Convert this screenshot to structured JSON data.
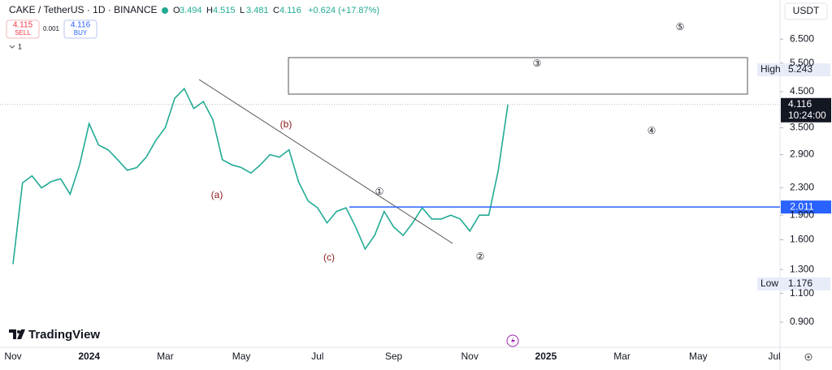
{
  "header": {
    "symbol": "CAKE / TetherUS · 1D · BINANCE",
    "ohlc": [
      {
        "key": "O",
        "value": "3.494"
      },
      {
        "key": "H",
        "value": "4.515"
      },
      {
        "key": "L",
        "value": "3.481"
      },
      {
        "key": "C",
        "value": "4.116"
      }
    ],
    "change": "+0.624 (+17.87%)",
    "sell": {
      "price": "4.115",
      "label": "SELL"
    },
    "spread": "0.001",
    "buy": {
      "price": "4.116",
      "label": "BUY"
    },
    "collapse": "1",
    "currency": "USDT",
    "brand": "TradingView"
  },
  "chart_data": {
    "type": "line",
    "log_scale": true,
    "color": "#22ab94",
    "categories": [
      "Nov",
      null,
      null,
      null,
      null,
      null,
      null,
      null,
      "2024",
      null,
      null,
      null,
      null,
      null,
      null,
      null,
      "Mar",
      null,
      null,
      null,
      null,
      null,
      null,
      null,
      "May",
      null,
      null,
      null,
      null,
      null,
      null,
      null,
      "Jul",
      null,
      null,
      null,
      null,
      null,
      null,
      null,
      "Sep",
      null,
      null,
      null,
      null,
      null,
      null,
      null,
      "Nov",
      null,
      null,
      null,
      null,
      null,
      null,
      null,
      "2025",
      null,
      null,
      null,
      null,
      null,
      null,
      null,
      "Mar",
      null,
      null,
      null,
      null,
      null,
      null,
      null,
      "May",
      null,
      null,
      null,
      null,
      null,
      null,
      null,
      "Jul"
    ],
    "values": [
      1.35,
      2.38,
      2.5,
      2.3,
      2.4,
      2.45,
      2.2,
      2.7,
      3.6,
      3.1,
      3.0,
      2.8,
      2.6,
      2.65,
      2.85,
      3.2,
      3.5,
      4.3,
      4.6,
      4.0,
      4.2,
      3.7,
      2.8,
      2.7,
      2.65,
      2.55,
      2.7,
      2.9,
      2.85,
      3.0,
      2.4,
      2.1,
      2.0,
      1.8,
      1.95,
      2.0,
      1.75,
      1.5,
      1.65,
      1.95,
      1.75,
      1.65,
      1.8,
      2.0,
      1.85,
      1.85,
      1.9,
      1.85,
      1.7,
      1.9,
      1.9,
      2.6,
      4.116,
      null,
      null,
      null,
      null,
      null,
      null,
      null,
      null,
      null,
      null,
      null,
      null,
      null,
      null,
      null,
      null,
      null,
      null,
      null,
      null,
      null,
      null,
      null,
      null,
      null,
      null,
      null,
      null
    ],
    "ylim": [
      0.755,
      8.54
    ],
    "yticks": [
      {
        "value": 0.9,
        "label": "0.900"
      },
      {
        "value": 1.1,
        "label": "1.100"
      },
      {
        "value": 1.3,
        "label": "1.300"
      },
      {
        "value": 1.6,
        "label": "1.600"
      },
      {
        "value": 1.9,
        "label": "1.900"
      },
      {
        "value": 2.3,
        "label": "2.300"
      },
      {
        "value": 2.9,
        "label": "2.900"
      },
      {
        "value": 3.5,
        "label": "3.500"
      },
      {
        "value": 4.5,
        "label": "4.500"
      },
      {
        "value": 5.5,
        "label": "5.500"
      },
      {
        "value": 6.5,
        "label": "6.500"
      }
    ],
    "price_labels": [
      {
        "name": "High",
        "value": 5.243
      },
      {
        "name": "Low",
        "value": 1.176
      }
    ],
    "last_price": {
      "value": 4.116,
      "countdown": "10:24:00"
    },
    "level": {
      "value": 2.011
    },
    "annotations": [
      "(a)",
      "(b)",
      "(c)",
      "①",
      "②",
      "③",
      "④",
      "⑤"
    ]
  }
}
